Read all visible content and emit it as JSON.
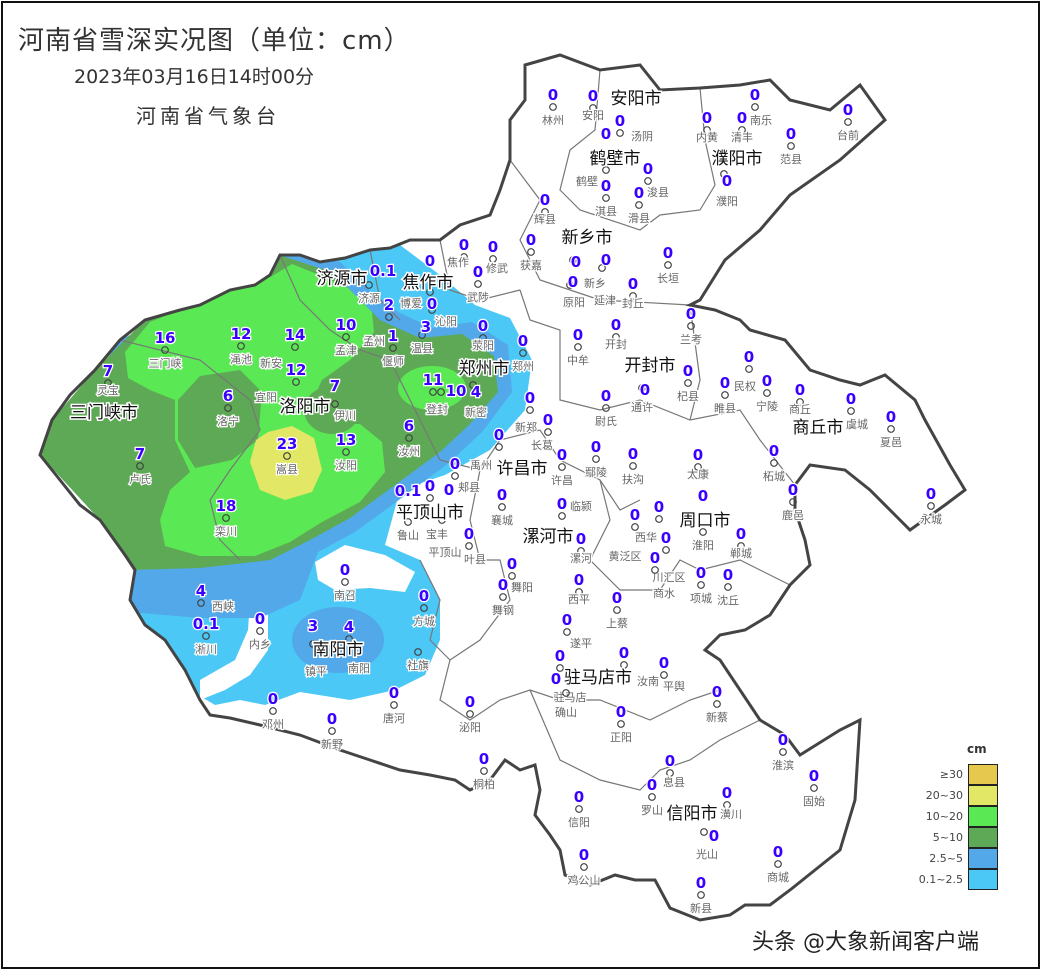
{
  "header": {
    "title": "河南省雪深实况图（单位：cm）",
    "datetime": "2023年03月16日14时00分",
    "organization": "河南省气象台"
  },
  "colors": {
    "ge30": "#e6c84e",
    "20_30": "#e2e766",
    "10_20": "#5be855",
    "5_10": "#5ea955",
    "2.5_5": "#52a8e8",
    "0.1_2.5": "#4bc8f5",
    "value_text": "#3a00ff"
  },
  "legend": {
    "unit": "cm",
    "items": [
      {
        "label": "≥30",
        "color": "#e6c84e"
      },
      {
        "label": "20~30",
        "color": "#e2e766"
      },
      {
        "label": "10~20",
        "color": "#5be855"
      },
      {
        "label": "5~10",
        "color": "#5ea955"
      },
      {
        "label": "2.5~5",
        "color": "#52a8e8"
      },
      {
        "label": "0.1~2.5",
        "color": "#4bc8f5"
      }
    ]
  },
  "cities": [
    "安阳市",
    "鹤壁市",
    "濮阳市",
    "新乡市",
    "焦作市",
    "济源市",
    "郑州市",
    "开封市",
    "洛阳市",
    "三门峡市",
    "商丘市",
    "许昌市",
    "平顶山市",
    "漯河市",
    "周口市",
    "南阳市",
    "驻马店市",
    "信阳市"
  ],
  "stations": [
    {
      "name": "林州",
      "value": "0"
    },
    {
      "name": "安阳",
      "value": "0"
    },
    {
      "name": "汤阴",
      "value": "0"
    },
    {
      "name": "鹤壁",
      "value": "0"
    },
    {
      "name": "浚县",
      "value": "0"
    },
    {
      "name": "淇县",
      "value": "0"
    },
    {
      "name": "滑县",
      "value": "0"
    },
    {
      "name": "辉县",
      "value": "0"
    },
    {
      "name": "获嘉",
      "value": "0"
    },
    {
      "name": "新乡",
      "value": "0"
    },
    {
      "name": "原阳",
      "value": "0"
    },
    {
      "name": "延津",
      "value": "0"
    },
    {
      "name": "长垣",
      "value": "0"
    },
    {
      "name": "封丘",
      "value": "0"
    },
    {
      "name": "内黄",
      "value": "0"
    },
    {
      "name": "清丰",
      "value": "0"
    },
    {
      "name": "南乐",
      "value": "0"
    },
    {
      "name": "濮阳",
      "value": "0"
    },
    {
      "name": "范县",
      "value": "0"
    },
    {
      "name": "台前",
      "value": "0"
    },
    {
      "name": "焦作",
      "value": "0"
    },
    {
      "name": "修武",
      "value": "0"
    },
    {
      "name": "博爱",
      "value": "0"
    },
    {
      "name": "武陟",
      "value": "0"
    },
    {
      "name": "沁阳",
      "value": "0"
    },
    {
      "name": "济源",
      "value": "0.1"
    },
    {
      "name": "孟州",
      "value": "2"
    },
    {
      "name": "温县",
      "value": "3"
    },
    {
      "name": "偃师",
      "value": "1"
    },
    {
      "name": "荥阳",
      "value": "0"
    },
    {
      "name": "郑州",
      "value": "0"
    },
    {
      "name": "中牟",
      "value": "0"
    },
    {
      "name": "开封",
      "value": "0"
    },
    {
      "name": "兰考",
      "value": "0"
    },
    {
      "name": "通许",
      "value": "0"
    },
    {
      "name": "杞县",
      "value": "0"
    },
    {
      "name": "尉氏",
      "value": "0"
    },
    {
      "name": "睢县",
      "value": "0"
    },
    {
      "name": "民权",
      "value": "0"
    },
    {
      "name": "宁陵",
      "value": "0"
    },
    {
      "name": "商丘",
      "value": "0"
    },
    {
      "name": "虞城",
      "value": "0"
    },
    {
      "name": "夏邑",
      "value": "0"
    },
    {
      "name": "柘城",
      "value": "0"
    },
    {
      "name": "鹿邑",
      "value": "0"
    },
    {
      "name": "永城",
      "value": "0"
    },
    {
      "name": "新郑",
      "value": "0"
    },
    {
      "name": "长葛",
      "value": "0"
    },
    {
      "name": "禹州",
      "value": "0"
    },
    {
      "name": "许昌",
      "value": "0"
    },
    {
      "name": "鄢陵",
      "value": "0"
    },
    {
      "name": "扶沟",
      "value": "0"
    },
    {
      "name": "太康",
      "value": "0"
    },
    {
      "name": "襄城",
      "value": "0"
    },
    {
      "name": "临颍",
      "value": "0"
    },
    {
      "name": "漯河",
      "value": "0"
    },
    {
      "name": "舞阳",
      "value": "0"
    },
    {
      "name": "舞钢",
      "value": "0"
    },
    {
      "name": "西华",
      "value": "0"
    },
    {
      "name": "黄泛区",
      "value": "0"
    },
    {
      "name": "川汇区",
      "value": "0"
    },
    {
      "name": "淮阳",
      "value": "0"
    },
    {
      "name": "郸城",
      "value": "0"
    },
    {
      "name": "项城",
      "value": "0"
    },
    {
      "name": "沈丘",
      "value": "0"
    },
    {
      "name": "商水",
      "value": "0"
    },
    {
      "name": "西平",
      "value": "0"
    },
    {
      "name": "上蔡",
      "value": "0"
    },
    {
      "name": "遂平",
      "value": "0"
    },
    {
      "name": "驻马店",
      "value": "0"
    },
    {
      "name": "汝南",
      "value": "0"
    },
    {
      "name": "确山",
      "value": "0"
    },
    {
      "name": "平舆",
      "value": "0"
    },
    {
      "name": "正阳",
      "value": "0"
    },
    {
      "name": "新蔡",
      "value": "0"
    },
    {
      "name": "泌阳",
      "value": "0"
    },
    {
      "name": "桐柏",
      "value": "0"
    },
    {
      "name": "息县",
      "value": "0"
    },
    {
      "name": "罗山",
      "value": "0"
    },
    {
      "name": "潢川",
      "value": "0"
    },
    {
      "name": "淮滨",
      "value": "0"
    },
    {
      "name": "固始",
      "value": "0"
    },
    {
      "name": "信阳",
      "value": "0"
    },
    {
      "name": "光山",
      "value": "0"
    },
    {
      "name": "鸡公山",
      "value": "0"
    },
    {
      "name": "商城",
      "value": "0"
    },
    {
      "name": "新县",
      "value": "0"
    },
    {
      "name": "三门峡",
      "value": "16"
    },
    {
      "name": "渑池",
      "value": "12"
    },
    {
      "name": "新安",
      "value": "14"
    },
    {
      "name": "宜阳",
      "value": "12"
    },
    {
      "name": "孟津",
      "value": "10"
    },
    {
      "name": "灵宝",
      "value": "7"
    },
    {
      "name": "洛宁",
      "value": "6"
    },
    {
      "name": "伊川",
      "value": "7"
    },
    {
      "name": "嵩县",
      "value": "23"
    },
    {
      "name": "汝阳",
      "value": "13"
    },
    {
      "name": "汝州",
      "value": "6"
    },
    {
      "name": "登封",
      "value": "11"
    },
    {
      "name": "",
      "value": "10"
    },
    {
      "name": "新密",
      "value": "4"
    },
    {
      "name": "卢氏",
      "value": "7"
    },
    {
      "name": "栾川",
      "value": "18"
    },
    {
      "name": "郏县",
      "value": "0"
    },
    {
      "name": "宝丰",
      "value": "0"
    },
    {
      "name": "鲁山",
      "value": "0.1"
    },
    {
      "name": "平顶山",
      "value": "0"
    },
    {
      "name": "叶县",
      "value": "0"
    },
    {
      "name": "西峡",
      "value": "4"
    },
    {
      "name": "淅川",
      "value": "0.1"
    },
    {
      "name": "内乡",
      "value": "0"
    },
    {
      "name": "南召",
      "value": "0"
    },
    {
      "name": "方城",
      "value": "0"
    },
    {
      "name": "镇平",
      "value": "3"
    },
    {
      "name": "南阳",
      "value": "4"
    },
    {
      "name": "社旗",
      "value": null
    },
    {
      "name": "邓州",
      "value": "0"
    },
    {
      "name": "新野",
      "value": "0"
    },
    {
      "name": "唐河",
      "value": "0"
    }
  ],
  "watermark": "头条 @大象新闻客户端"
}
